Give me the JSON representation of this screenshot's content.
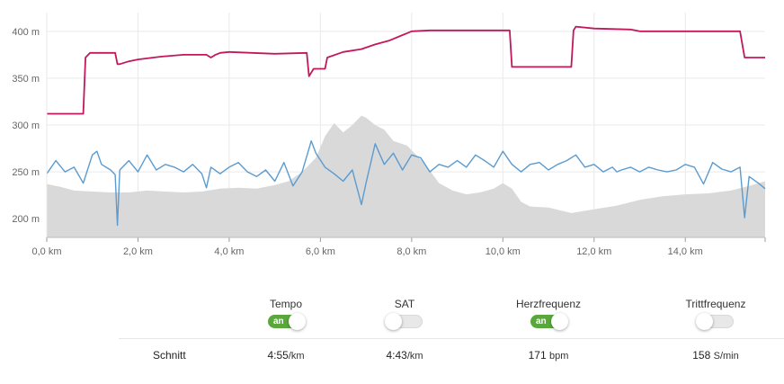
{
  "chart_data": {
    "type": "line",
    "x_ticks": [
      0,
      2,
      4,
      6,
      8,
      10,
      12,
      14
    ],
    "x_tick_labels": [
      "0,0 km",
      "2,0 km",
      "4,0 km",
      "6,0 km",
      "8,0 km",
      "10,0 km",
      "12,0 km",
      "14,0 km"
    ],
    "xlim": [
      0,
      15.75
    ],
    "y_ticks": [
      200,
      250,
      300,
      350,
      400
    ],
    "y_tick_labels": [
      "200 m",
      "250 m",
      "300 m",
      "350 m",
      "400 m"
    ],
    "ylim": [
      180,
      420
    ],
    "grid": true,
    "colors": {
      "elevation": "#d9d9d9",
      "heart_rate": "#c2185b",
      "pace": "#5b9bd0"
    },
    "series": [
      {
        "type": "area",
        "x": [
          0,
          0.3,
          0.6,
          1.0,
          1.4,
          1.8,
          2.2,
          2.6,
          3.0,
          3.4,
          3.8,
          4.2,
          4.6,
          5.0,
          5.3,
          5.6,
          5.9,
          6.1,
          6.3,
          6.5,
          6.7,
          6.9,
          7.0,
          7.2,
          7.4,
          7.6,
          7.9,
          8.1,
          8.3,
          8.6,
          8.9,
          9.2,
          9.5,
          9.8,
          10.0,
          10.2,
          10.4,
          10.6,
          11.0,
          11.5,
          12.0,
          12.5,
          13.0,
          13.5,
          14.0,
          14.5,
          15.0,
          15.4,
          15.75
        ],
        "values": [
          237,
          234,
          230,
          229,
          228,
          228,
          230,
          229,
          228,
          229,
          232,
          233,
          232,
          236,
          240,
          250,
          265,
          288,
          302,
          292,
          300,
          310,
          308,
          300,
          295,
          283,
          278,
          268,
          258,
          238,
          230,
          226,
          228,
          232,
          238,
          232,
          218,
          213,
          212,
          206,
          210,
          214,
          220,
          224,
          226,
          227,
          230,
          235,
          240
        ]
      },
      {
        "type": "line",
        "x": [
          0,
          0.8,
          0.85,
          0.95,
          1.1,
          1.5,
          1.55,
          1.6,
          1.8,
          2.0,
          2.5,
          3.0,
          3.5,
          3.6,
          3.7,
          3.8,
          4.0,
          4.5,
          5.0,
          5.7,
          5.75,
          5.85,
          6.1,
          6.15,
          6.5,
          6.9,
          7.2,
          7.5,
          7.8,
          7.9,
          8.0,
          8.4,
          9.0,
          9.5,
          10.15,
          10.2,
          10.3,
          11.5,
          11.55,
          11.6,
          12.0,
          12.8,
          13.0,
          14.0,
          15.2,
          15.3,
          15.5,
          15.75
        ],
        "values": [
          312,
          312,
          372,
          377,
          377,
          377,
          365,
          365,
          368,
          370,
          373,
          375,
          375,
          372,
          375,
          377,
          378,
          377,
          376,
          377,
          352,
          360,
          360,
          372,
          378,
          381,
          386,
          390,
          396,
          398,
          400,
          401,
          401,
          401,
          401,
          362,
          362,
          362,
          401,
          405,
          403,
          402,
          400,
          400,
          400,
          372,
          372,
          372
        ]
      },
      {
        "type": "line",
        "x": [
          0,
          0.2,
          0.4,
          0.6,
          0.8,
          1.0,
          1.1,
          1.2,
          1.4,
          1.5,
          1.55,
          1.6,
          1.8,
          2.0,
          2.2,
          2.4,
          2.6,
          2.8,
          3.0,
          3.2,
          3.4,
          3.5,
          3.6,
          3.8,
          4.0,
          4.2,
          4.4,
          4.6,
          4.8,
          5.0,
          5.2,
          5.4,
          5.6,
          5.8,
          5.9,
          6.1,
          6.3,
          6.5,
          6.7,
          6.9,
          7.0,
          7.2,
          7.4,
          7.6,
          7.8,
          8.0,
          8.2,
          8.4,
          8.6,
          8.8,
          9.0,
          9.2,
          9.4,
          9.6,
          9.8,
          10.0,
          10.2,
          10.4,
          10.6,
          10.8,
          11.0,
          11.2,
          11.4,
          11.6,
          11.8,
          12.0,
          12.2,
          12.4,
          12.5,
          12.6,
          12.8,
          13.0,
          13.2,
          13.4,
          13.6,
          13.8,
          14.0,
          14.2,
          14.4,
          14.6,
          14.8,
          15.0,
          15.2,
          15.3,
          15.4,
          15.6,
          15.75
        ],
        "values": [
          248,
          262,
          250,
          255,
          238,
          268,
          272,
          258,
          252,
          247,
          193,
          252,
          262,
          250,
          268,
          252,
          258,
          255,
          250,
          258,
          248,
          233,
          255,
          248,
          255,
          260,
          250,
          245,
          252,
          240,
          260,
          235,
          250,
          283,
          270,
          255,
          248,
          240,
          252,
          215,
          238,
          280,
          258,
          270,
          252,
          268,
          265,
          250,
          258,
          255,
          262,
          255,
          268,
          262,
          255,
          272,
          258,
          250,
          258,
          260,
          252,
          258,
          262,
          268,
          255,
          258,
          250,
          255,
          250,
          252,
          255,
          250,
          255,
          252,
          250,
          252,
          258,
          255,
          237,
          260,
          253,
          250,
          255,
          201,
          245,
          238,
          232
        ]
      }
    ]
  },
  "controls": [
    {
      "label": "Tempo",
      "on": true,
      "state_text": "an"
    },
    {
      "label": "SAT",
      "on": false,
      "state_text": ""
    },
    {
      "label": "Herzfrequenz",
      "on": true,
      "state_text": "an"
    },
    {
      "label": "Trittfrequenz",
      "on": false,
      "state_text": ""
    }
  ],
  "summary": {
    "label": "Schnitt",
    "values": [
      {
        "value": "4:55",
        "unit": "/km"
      },
      {
        "value": "4:43",
        "unit": "/km"
      },
      {
        "value": "171",
        "unit": "bpm"
      },
      {
        "value": "158",
        "unit": "S/min"
      }
    ]
  }
}
